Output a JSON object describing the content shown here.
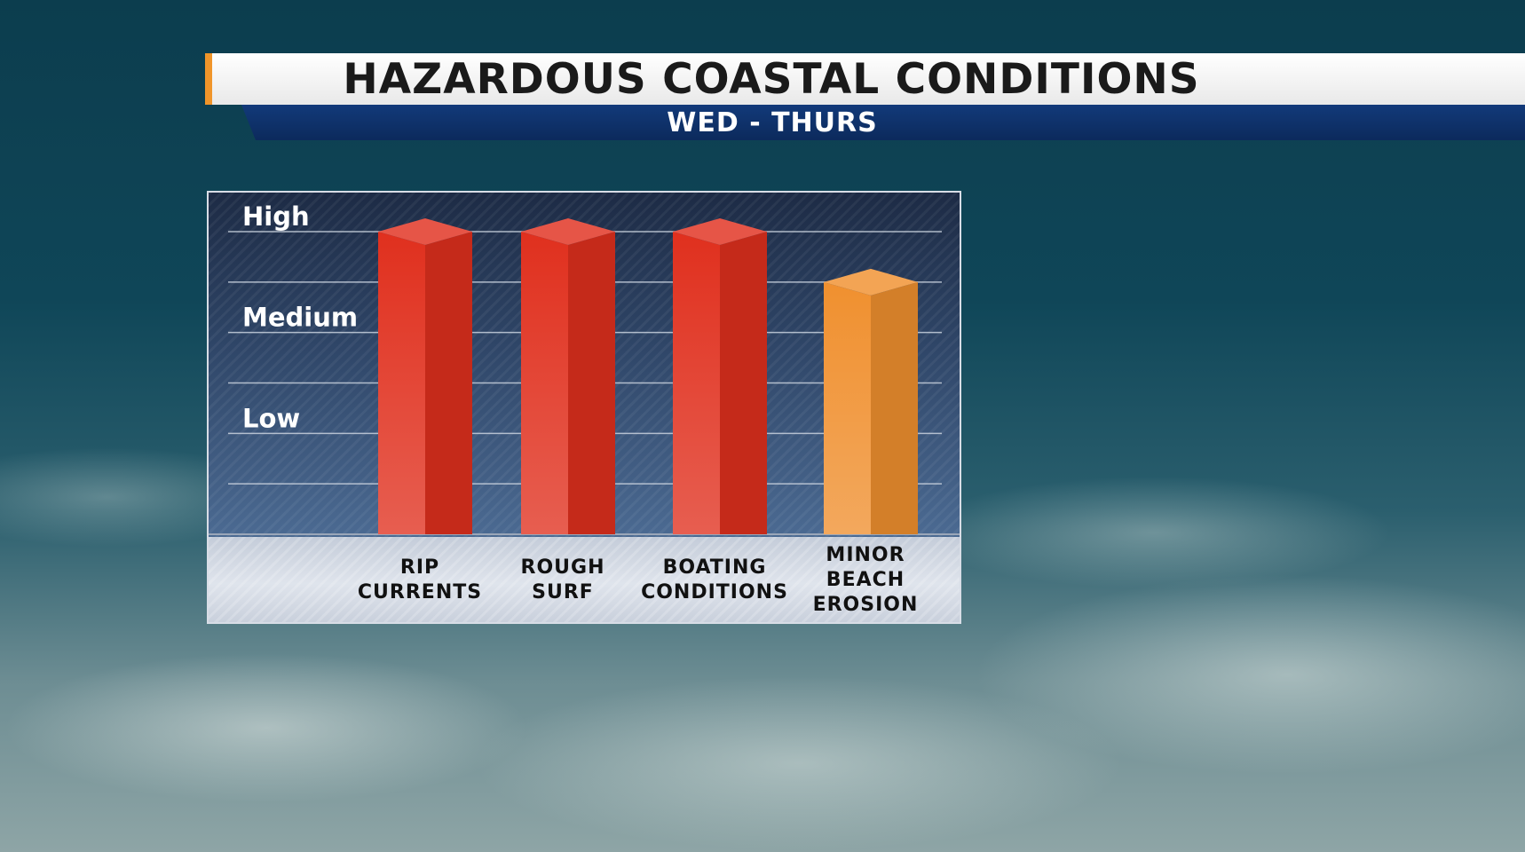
{
  "title": "HAZARDOUS COASTAL CONDITIONS",
  "subtitle": "WED - THURS",
  "colors": {
    "banner_accent": "#f0952a",
    "subtitle_bar": "#0c2a5c",
    "bar_high": "#e0301e",
    "bar_medium_high": "#f0902f"
  },
  "chart_data": {
    "type": "bar",
    "y_levels": [
      "Low",
      "Medium",
      "High"
    ],
    "ylim": [
      0,
      6
    ],
    "gridlines": [
      1,
      2,
      3,
      4,
      5,
      6
    ],
    "categories": [
      [
        "RIP",
        "CURRENTS"
      ],
      [
        "ROUGH",
        "SURF"
      ],
      [
        "BOATING",
        "CONDITIONS"
      ],
      [
        "MINOR",
        "BEACH",
        "EROSION"
      ]
    ],
    "values": [
      6,
      6,
      6,
      5
    ],
    "bar_colors": [
      "#e0301e",
      "#e0301e",
      "#e0301e",
      "#f0902f"
    ],
    "grid": true,
    "legend": "none"
  }
}
